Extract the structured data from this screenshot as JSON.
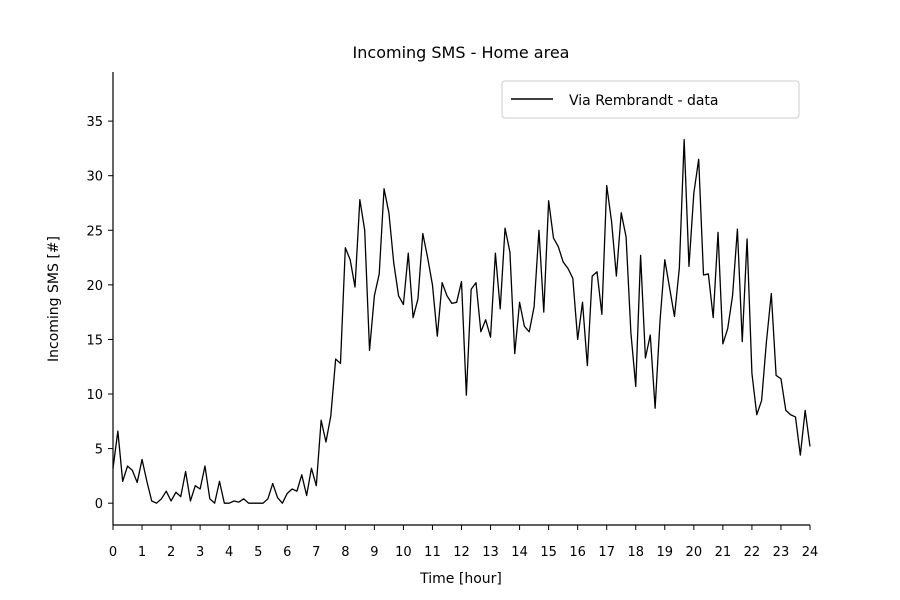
{
  "chart_data": {
    "type": "line",
    "title": "Incoming SMS - Home area",
    "xlabel": "Time [hour]",
    "ylabel": "Incoming SMS [#]",
    "xlim": [
      0,
      24
    ],
    "ylim": [
      -2,
      39.5
    ],
    "xticks": [
      0,
      1,
      2,
      3,
      4,
      5,
      6,
      7,
      8,
      9,
      10,
      11,
      12,
      13,
      14,
      15,
      16,
      17,
      18,
      19,
      20,
      21,
      22,
      23,
      24
    ],
    "yticks": [
      0,
      5,
      10,
      15,
      20,
      25,
      30,
      35
    ],
    "grid": false,
    "legend_position": "top-right",
    "series": [
      {
        "name": "Via Rembrandt - data",
        "color": "#000000",
        "x": [
          0,
          0.167,
          0.333,
          0.5,
          0.667,
          0.833,
          1,
          1.167,
          1.333,
          1.5,
          1.667,
          1.833,
          2,
          2.167,
          2.333,
          2.5,
          2.667,
          2.833,
          3,
          3.167,
          3.333,
          3.5,
          3.667,
          3.833,
          4,
          4.167,
          4.333,
          4.5,
          4.667,
          4.833,
          5,
          5.167,
          5.333,
          5.5,
          5.667,
          5.833,
          6,
          6.167,
          6.333,
          6.5,
          6.667,
          6.833,
          7,
          7.167,
          7.333,
          7.5,
          7.667,
          7.833,
          8,
          8.167,
          8.333,
          8.5,
          8.667,
          8.833,
          9,
          9.167,
          9.333,
          9.5,
          9.667,
          9.833,
          10,
          10.167,
          10.333,
          10.5,
          10.667,
          10.833,
          11,
          11.167,
          11.333,
          11.5,
          11.667,
          11.833,
          12,
          12.167,
          12.333,
          12.5,
          12.667,
          12.833,
          13,
          13.167,
          13.333,
          13.5,
          13.667,
          13.833,
          14,
          14.167,
          14.333,
          14.5,
          14.667,
          14.833,
          15,
          15.167,
          15.333,
          15.5,
          15.667,
          15.833,
          16,
          16.167,
          16.333,
          16.5,
          16.667,
          16.833,
          17,
          17.167,
          17.333,
          17.5,
          17.667,
          17.833,
          18,
          18.167,
          18.333,
          18.5,
          18.667,
          18.833,
          19,
          19.167,
          19.333,
          19.5,
          19.667,
          19.833,
          20,
          20.167,
          20.333,
          20.5,
          20.667,
          20.833,
          21,
          21.167,
          21.333,
          21.5,
          21.667,
          21.833,
          22,
          22.167,
          22.333,
          22.5,
          22.667,
          22.833,
          23,
          23.167,
          23.333,
          23.5,
          23.667,
          23.833,
          24
        ],
        "y": [
          3.2,
          6.6,
          2.0,
          3.4,
          3.0,
          1.9,
          4.0,
          2.0,
          0.2,
          0.0,
          0.4,
          1.1,
          0.2,
          1.0,
          0.6,
          2.9,
          0.2,
          1.6,
          1.3,
          3.4,
          0.4,
          0.0,
          2.0,
          0.0,
          0.0,
          0.2,
          0.1,
          0.4,
          0.0,
          0.0,
          0.0,
          0.0,
          0.4,
          1.8,
          0.5,
          0.0,
          0.9,
          1.3,
          1.1,
          2.6,
          0.7,
          3.2,
          1.6,
          7.6,
          5.6,
          8.0,
          13.2,
          12.8,
          23.4,
          22.3,
          19.8,
          27.8,
          25.0,
          14.0,
          19.0,
          21.0,
          28.8,
          26.6,
          22.0,
          19.0,
          18.2,
          22.9,
          17.0,
          18.7,
          24.7,
          22.5,
          20.0,
          15.3,
          20.2,
          19.0,
          18.3,
          18.4,
          20.3,
          9.9,
          19.6,
          20.2,
          15.7,
          16.8,
          15.2,
          22.9,
          17.8,
          25.2,
          23.0,
          13.7,
          18.4,
          16.2,
          15.7,
          18.0,
          25.0,
          17.5,
          27.7,
          24.3,
          23.5,
          22.1,
          21.5,
          20.6,
          15.0,
          18.4,
          12.6,
          20.8,
          21.2,
          17.3,
          29.1,
          25.8,
          20.8,
          26.6,
          24.4,
          15.6,
          10.7,
          22.7,
          13.3,
          15.4,
          8.7,
          16.6,
          22.3,
          19.7,
          17.1,
          21.5,
          33.3,
          21.7,
          28.4,
          31.5,
          20.9,
          21.0,
          17.0,
          24.8,
          14.6,
          16.0,
          19.0,
          25.1,
          14.8,
          24.2,
          11.9,
          8.1,
          9.4,
          14.8,
          19.2,
          11.7,
          11.4,
          8.5,
          8.1,
          7.9,
          4.4,
          8.5,
          5.2
        ]
      }
    ]
  }
}
